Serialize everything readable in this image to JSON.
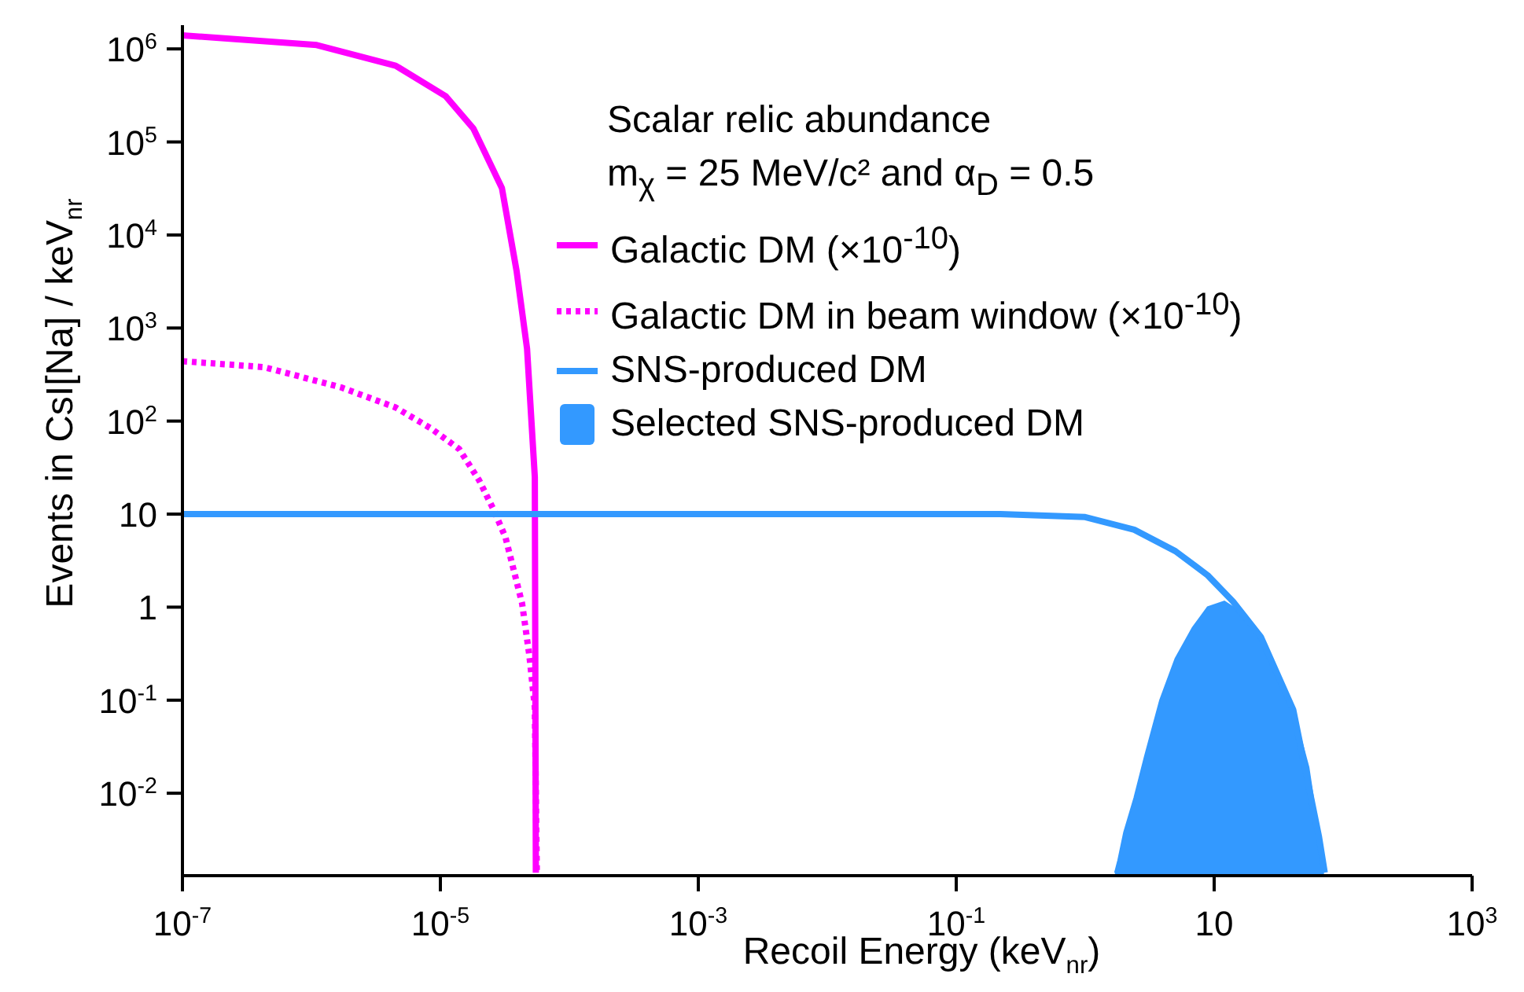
{
  "chart_data": {
    "type": "line",
    "xlabel": "Recoil Energy (keV$_{nr}$)",
    "ylabel": "Events in CsI[Na] / keV$_{nr}$",
    "legend_title": "Scalar relic abundance",
    "annotations": [
      "m$_{χ}$ = 25 MeV/c² and α$_{D}$ = 0.5"
    ],
    "log": "xy",
    "grid": false,
    "legend": "top right",
    "xlim": [
      1e-07,
      1000
    ],
    "xticks": [
      {
        "value": 1e-07,
        "label": "10$^{-7}$"
      },
      {
        "value": 1e-05,
        "label": "10$^{-5}$"
      },
      {
        "value": 0.001,
        "label": "10$^{-3}$"
      },
      {
        "value": 0.1,
        "label": "10$^{-1}$"
      },
      10,
      {
        "value": 1000,
        "label": "10$^{3}$"
      }
    ],
    "ylim": [
      0.0013,
      1800000
    ],
    "yticks": [
      {
        "value": 0.01,
        "label": "10$^{-2}$"
      },
      {
        "value": 0.1,
        "label": "10$^{-1}$"
      },
      1,
      10,
      {
        "value": 100,
        "label": "10$^{2}$"
      },
      {
        "value": 1000,
        "label": "10$^{3}$"
      },
      {
        "value": 10000,
        "label": "10$^{4}$"
      },
      {
        "value": 100000,
        "label": "10$^{5}$"
      },
      {
        "value": 1000000,
        "label": "10$^{6}$"
      }
    ],
    "series": [
      {
        "name": "Galactic DM (×10$^{-10}$)",
        "color": "#ff00ff",
        "line_style": "solid",
        "x": [
          1e-07,
          1.1e-06,
          4.5e-06,
          1.1e-05,
          1.8e-05,
          3e-05,
          3.9e-05,
          4.7e-05,
          5.4e-05,
          5.5e-05
        ],
        "values": [
          1400000,
          1100000,
          660000,
          310000,
          140000,
          32000,
          4100,
          600,
          25,
          0.0014
        ]
      },
      {
        "name": "Galactic DM in beam window (×10$^{-10}$)",
        "color": "#ff00ff",
        "line_style": "dotted",
        "x": [
          1e-07,
          4.3e-07,
          1.7e-06,
          4.5e-06,
          8.5e-06,
          1.4e-05,
          2e-05,
          2.6e-05,
          3.2e-05,
          4.3e-05,
          4.9e-05,
          5.4e-05,
          5.6e-05
        ],
        "values": [
          440,
          380,
          230,
          140,
          83,
          50,
          23,
          11,
          5.6,
          1.1,
          0.3,
          0.083,
          0.0014
        ]
      },
      {
        "name": "SNS-produced DM",
        "color": "#3399ff",
        "line_style": "solid",
        "x": [
          1e-07,
          0.22,
          1.0,
          2.4,
          5.0,
          8.9,
          14,
          23,
          41,
          65,
          72
        ],
        "values": [
          10,
          10,
          9.3,
          6.8,
          4.0,
          2.2,
          1.15,
          0.48,
          0.079,
          0.0034,
          0.0014
        ]
      },
      {
        "name": "Selected SNS-produced DM",
        "type": "area",
        "color": "#3399ff",
        "x": [
          1.7,
          1.8,
          2.0,
          2.4,
          2.9,
          3.8,
          5.0,
          6.8,
          8.9,
          12,
          14,
          23,
          41,
          54,
          65,
          71
        ],
        "values": [
          0.0014,
          0.0019,
          0.0038,
          0.0089,
          0.025,
          0.1,
          0.28,
          0.6,
          1.0,
          1.15,
          1.0,
          0.48,
          0.079,
          0.019,
          0.0034,
          0.0014
        ]
      }
    ]
  }
}
